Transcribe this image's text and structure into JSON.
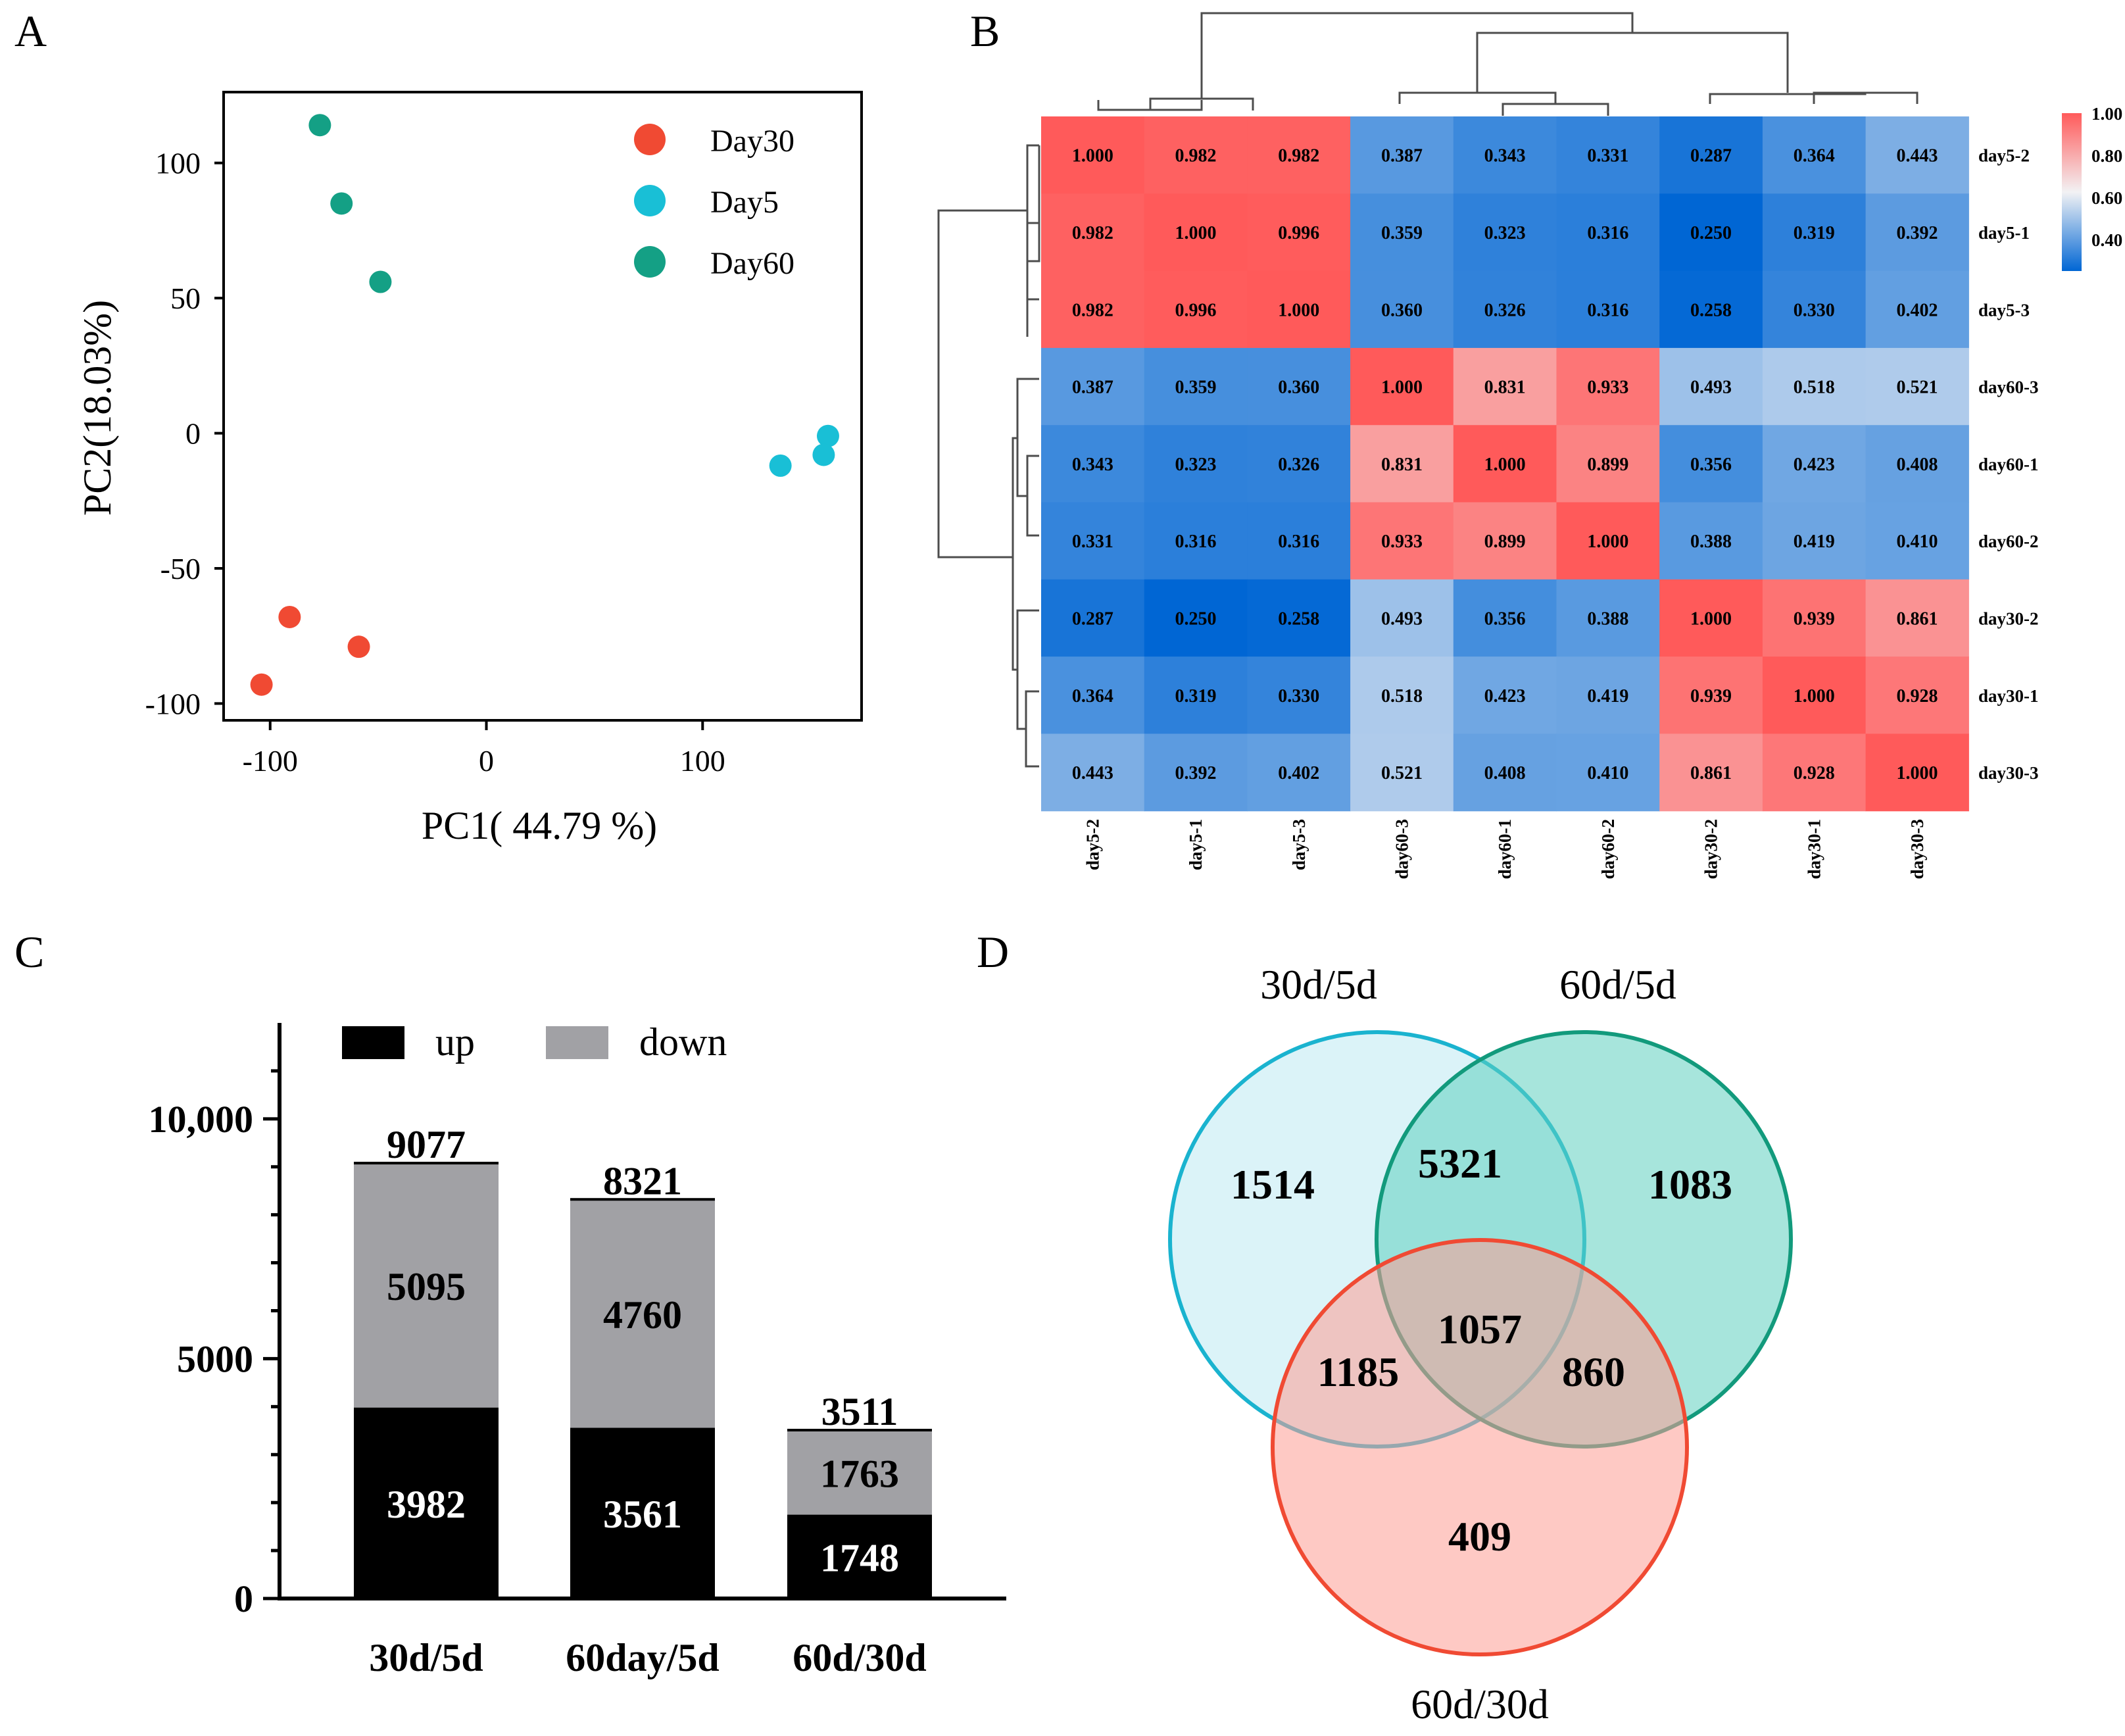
{
  "colors": {
    "day30": "#f04a33",
    "day5": "#19bfd6",
    "day60": "#14a085",
    "up": "#000000",
    "down": "#a1a1a5",
    "heat_low": "#0066d4",
    "heat_mid": "#f2f2f4",
    "heat_high": "#ff5a5a",
    "venn_30_5_fill": "#bdeaf3",
    "venn_30_5_stroke": "#1ab3cf",
    "venn_60_5_fill": "#9fe3d8",
    "venn_60_5_stroke": "#129a7c",
    "venn_60_30_fill": "#fec8c3",
    "venn_60_30_stroke": "#f04a33"
  },
  "panel_labels": [
    "A",
    "B",
    "C",
    "D"
  ],
  "chart_data": [
    {
      "panel": "A",
      "type": "scatter",
      "xlabel": "PC1( 44.79 %)",
      "ylabel": "PC2(18.03%)",
      "xlim": [
        -120,
        172
      ],
      "ylim": [
        -105,
        125
      ],
      "xticks": [
        -100,
        0,
        100
      ],
      "xtick_labels": [
        "-100",
        "0",
        "100"
      ],
      "yticks": [
        100,
        50,
        0,
        -50,
        -100
      ],
      "ytick_labels": [
        "100",
        "50",
        "0",
        "-50",
        "-100"
      ],
      "legend_position": "top-right",
      "series": [
        {
          "name": "Day30",
          "color_key": "day30",
          "points": [
            [
              -91,
              -68
            ],
            [
              -59,
              -79
            ],
            [
              -104,
              -93
            ]
          ]
        },
        {
          "name": "Day5",
          "color_key": "day5",
          "points": [
            [
              158,
              -1
            ],
            [
              156,
              -8
            ],
            [
              136,
              -12
            ]
          ]
        },
        {
          "name": "Day60",
          "color_key": "day60",
          "points": [
            [
              -77,
              114
            ],
            [
              -67,
              85
            ],
            [
              -49,
              56
            ]
          ]
        }
      ]
    },
    {
      "panel": "B",
      "type": "heatmap",
      "row_labels": [
        "day5-2",
        "day5-1",
        "day5-3",
        "day60-3",
        "day60-1",
        "day60-2",
        "day30-2",
        "day30-1",
        "day30-3"
      ],
      "col_labels": [
        "day5-2",
        "day5-1",
        "day5-3",
        "day60-3",
        "day60-1",
        "day60-2",
        "day30-2",
        "day30-1",
        "day30-3"
      ],
      "values": [
        [
          "1.000",
          "0.982",
          "0.982",
          "0.387",
          "0.343",
          "0.331",
          "0.287",
          "0.364",
          "0.443"
        ],
        [
          "0.982",
          "1.000",
          "0.996",
          "0.359",
          "0.323",
          "0.316",
          "0.250",
          "0.319",
          "0.392"
        ],
        [
          "0.982",
          "0.996",
          "1.000",
          "0.360",
          "0.326",
          "0.316",
          "0.258",
          "0.330",
          "0.402"
        ],
        [
          "0.387",
          "0.359",
          "0.360",
          "1.000",
          "0.831",
          "0.933",
          "0.493",
          "0.518",
          "0.521"
        ],
        [
          "0.343",
          "0.323",
          "0.326",
          "0.831",
          "1.000",
          "0.899",
          "0.356",
          "0.423",
          "0.408"
        ],
        [
          "0.331",
          "0.316",
          "0.316",
          "0.933",
          "0.899",
          "1.000",
          "0.388",
          "0.419",
          "0.410"
        ],
        [
          "0.287",
          "0.250",
          "0.258",
          "0.493",
          "0.356",
          "0.388",
          "1.000",
          "0.939",
          "0.861"
        ],
        [
          "0.364",
          "0.319",
          "0.330",
          "0.518",
          "0.423",
          "0.419",
          "0.939",
          "1.000",
          "0.928"
        ],
        [
          "0.443",
          "0.392",
          "0.402",
          "0.521",
          "0.408",
          "0.410",
          "0.861",
          "0.928",
          "1.000"
        ]
      ],
      "colorbar_range": [
        0.25,
        1.0
      ],
      "colorbar_ticks": [
        1.0,
        0.8,
        0.6,
        0.4
      ],
      "colorbar_labels": [
        "1.00",
        "0.80",
        "0.60",
        "0.40"
      ],
      "dendrogram": "hierarchical clustering on rows and columns"
    },
    {
      "panel": "C",
      "type": "bar",
      "stacked": true,
      "categories": [
        "30d/5d",
        "60day/5d",
        "60d/30d"
      ],
      "series": [
        {
          "name": "up",
          "color_key": "up",
          "values": [
            3982,
            3561,
            1748
          ]
        },
        {
          "name": "down",
          "color_key": "down",
          "values": [
            5095,
            4760,
            1763
          ]
        }
      ],
      "totals": [
        9077,
        8321,
        3511
      ],
      "ylim": [
        0,
        12000
      ],
      "yticks": [
        0,
        5000,
        10000
      ],
      "ytick_labels": [
        "0",
        "5000",
        "10,000"
      ],
      "legend_position": "top"
    },
    {
      "panel": "D",
      "type": "venn",
      "sets": [
        "30d/5d",
        "60d/5d",
        "60d/30d"
      ],
      "regions": {
        "only_30d_5d": 1514,
        "only_60d_5d": 1083,
        "only_60d_30d": 409,
        "30d_5d_and_60d_5d": 5321,
        "30d_5d_and_60d_30d": 1185,
        "60d_5d_and_60d_30d": 860,
        "all_three": 1057
      }
    }
  ]
}
